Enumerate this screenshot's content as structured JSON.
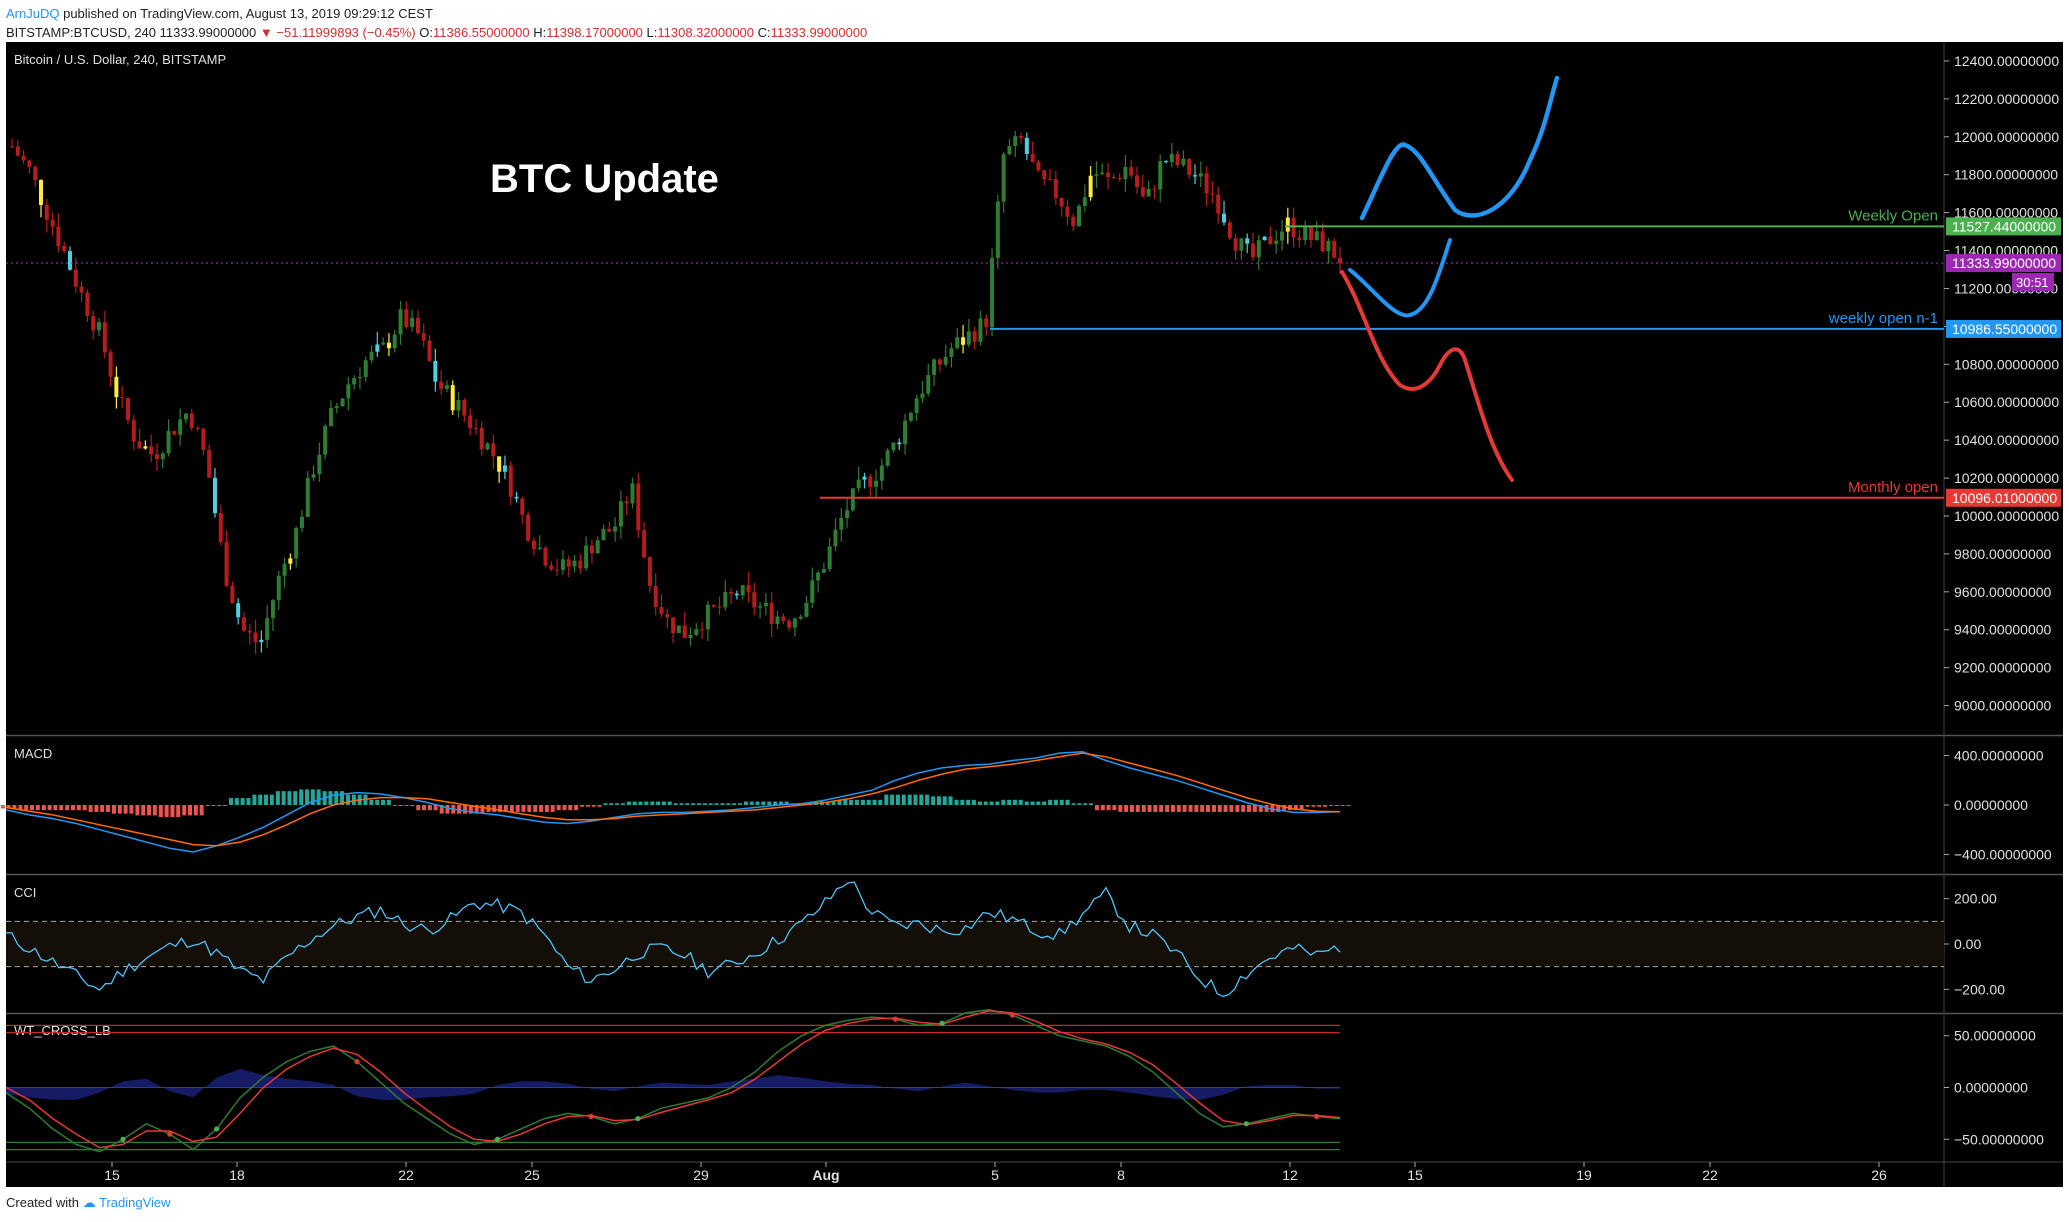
{
  "header": {
    "user": "ArnJuDQ",
    "published": "published on TradingView.com, August 13, 2019 09:29:12 CEST",
    "symbol_line_prefix": "BITSTAMP:BTCUSD, 240  11333.99000000",
    "change": "▼ −51.11999893 (−0.45%)",
    "o_label": "O:",
    "o_value": "11386.55000000",
    "h_label": "H:",
    "h_value": "11398.17000000",
    "l_label": "L:",
    "l_value": "11308.32000000",
    "c_label": "C:",
    "c_value": "11333.99000000"
  },
  "footer": {
    "created_with": "Created with",
    "brand": "TradingView"
  },
  "colors": {
    "bg": "#000000",
    "up": "#2e7d32",
    "down": "#b71c1c",
    "blue": "#2196f3",
    "green": "#4caf50",
    "red": "#e53935",
    "purple": "#9c27b0",
    "teal": "#26a69a"
  },
  "chart_data": [
    {
      "type": "candlestick",
      "title": "Bitcoin / U.S. Dollar, 240, BITSTAMP",
      "annotation": "BTC Update",
      "ylim": [
        8850,
        12500
      ],
      "y_ticks": [
        9000,
        9200,
        9400,
        9600,
        9800,
        10000,
        10200,
        10400,
        10600,
        10800,
        11000,
        11200,
        11400,
        11600,
        11800,
        12000,
        12200,
        12400
      ],
      "y_tick_labels": [
        "9000.00000000",
        "9200.00000000",
        "9400.00000000",
        "9600.00000000",
        "9800.00000000",
        "10000.00000000",
        "10200.00000000",
        "10400.00000000",
        "10600.00000000",
        "10800.00000000",
        "11000.00000000",
        "11200.00000000",
        "11400.00000000",
        "11600.00000000",
        "11800.00000000",
        "12000.00000000",
        "12200.00000000",
        "12400.00000000"
      ],
      "x_tick_labels": [
        "15",
        "18",
        "22",
        "25",
        "29",
        "Aug",
        "5",
        "8",
        "12",
        "15",
        "19",
        "22",
        "26"
      ],
      "close_path": [
        11950,
        11820,
        11600,
        11380,
        11150,
        10950,
        10620,
        10400,
        10320,
        10450,
        10560,
        10280,
        9720,
        9400,
        9320,
        9650,
        9900,
        10250,
        10520,
        10700,
        10820,
        10880,
        11050,
        10950,
        10700,
        10600,
        10480,
        10350,
        10200,
        9950,
        9800,
        9720,
        9760,
        9880,
        9940,
        10150,
        9650,
        9450,
        9380,
        9460,
        9520,
        9600,
        9530,
        9480,
        9450,
        9580,
        9780,
        10020,
        10160,
        10250,
        10400,
        10620,
        10760,
        10880,
        10950,
        11020,
        11900,
        11980,
        11760,
        11700,
        11550,
        11820,
        11760,
        11850,
        11640,
        11880,
        11850,
        11780,
        11680,
        11470,
        11350,
        11460,
        11540,
        11480,
        11440,
        11360
      ],
      "levels": [
        {
          "name": "Weekly Open",
          "value": 11527.44,
          "label": "11527.44000000",
          "color": "#4caf50"
        },
        {
          "name": "weekly open n-1",
          "value": 10986.55,
          "label": "10986.55000000",
          "color": "#2196f3"
        },
        {
          "name": "Monthly open",
          "value": 10096.01,
          "label": "10096.01000000",
          "color": "#e53935"
        }
      ],
      "last_price": {
        "value": 11333.99,
        "label": "11333.99000000",
        "countdown": "30:51",
        "color": "#9c27b0"
      }
    },
    {
      "type": "macd",
      "title": "MACD",
      "ylim": [
        -550,
        550
      ],
      "y_ticks": [
        -400,
        0,
        400
      ],
      "y_tick_labels": [
        "−400.00000000",
        "0.00000000",
        "400.00000000"
      ],
      "macd": [
        -40,
        -80,
        -110,
        -150,
        -200,
        -250,
        -300,
        -350,
        -380,
        -330,
        -260,
        -180,
        -80,
        20,
        80,
        100,
        90,
        60,
        20,
        -30,
        -60,
        -80,
        -110,
        -140,
        -150,
        -130,
        -100,
        -70,
        -60,
        -60,
        -50,
        -40,
        -20,
        0,
        10,
        40,
        80,
        120,
        200,
        260,
        300,
        320,
        330,
        360,
        380,
        420,
        430,
        360,
        300,
        250,
        200,
        140,
        80,
        20,
        -30,
        -60,
        -60,
        -55
      ],
      "signal": [
        -20,
        -50,
        -80,
        -120,
        -160,
        -200,
        -240,
        -280,
        -320,
        -330,
        -300,
        -240,
        -160,
        -70,
        0,
        40,
        60,
        60,
        50,
        20,
        -10,
        -40,
        -70,
        -100,
        -120,
        -120,
        -110,
        -90,
        -80,
        -70,
        -60,
        -50,
        -40,
        -20,
        0,
        20,
        50,
        90,
        140,
        200,
        250,
        290,
        310,
        330,
        360,
        390,
        420,
        390,
        340,
        290,
        240,
        180,
        120,
        60,
        10,
        -30,
        -50,
        -55
      ]
    },
    {
      "type": "cci",
      "title": "CCI",
      "ylim": [
        -300,
        300
      ],
      "y_ticks": [
        -200,
        0,
        200
      ],
      "y_tick_labels": [
        "−200.00",
        "0.00",
        "200.00"
      ],
      "bands": [
        -100,
        100
      ],
      "values": [
        40,
        -20,
        -80,
        -140,
        -200,
        -120,
        -60,
        -10,
        20,
        -40,
        -120,
        -160,
        -60,
        20,
        80,
        120,
        150,
        90,
        60,
        110,
        180,
        170,
        140,
        40,
        -100,
        -160,
        -110,
        -40,
        -20,
        -50,
        -120,
        -90,
        -40,
        20,
        90,
        180,
        220,
        140,
        80,
        90,
        60,
        70,
        140,
        110,
        60,
        40,
        130,
        220,
        80,
        40,
        -40,
        -150,
        -220,
        -130,
        -60,
        -20,
        -50,
        -10
      ],
      "raw_extras": {
        "spike_index": 36,
        "spike_value": 290
      }
    },
    {
      "type": "wavetrend",
      "title": "WT_CROSS_LB",
      "ylim": [
        -70,
        70
      ],
      "y_ticks": [
        -50,
        0,
        50
      ],
      "y_tick_labels": [
        "−50.00000000",
        "0.00000000",
        "50.00000000"
      ],
      "ob_levels": [
        53,
        60
      ],
      "os_levels": [
        -53,
        -60
      ],
      "wt1": [
        -5,
        -20,
        -40,
        -55,
        -62,
        -50,
        -35,
        -45,
        -60,
        -40,
        -10,
        10,
        25,
        35,
        40,
        25,
        5,
        -15,
        -30,
        -45,
        -55,
        -50,
        -40,
        -30,
        -25,
        -28,
        -35,
        -30,
        -20,
        -15,
        -10,
        0,
        15,
        35,
        50,
        60,
        65,
        68,
        66,
        60,
        62,
        72,
        75,
        70,
        60,
        50,
        45,
        40,
        30,
        15,
        -5,
        -25,
        -38,
        -35,
        -30,
        -25,
        -28,
        -30
      ],
      "wt2": [
        0,
        -12,
        -30,
        -45,
        -58,
        -55,
        -42,
        -42,
        -52,
        -48,
        -25,
        0,
        18,
        30,
        38,
        32,
        15,
        -5,
        -22,
        -38,
        -50,
        -52,
        -45,
        -35,
        -28,
        -27,
        -32,
        -31,
        -24,
        -18,
        -12,
        -5,
        8,
        25,
        42,
        55,
        62,
        66,
        67,
        63,
        61,
        68,
        74,
        72,
        64,
        54,
        47,
        42,
        34,
        22,
        4,
        -15,
        -32,
        -36,
        -32,
        -27,
        -27,
        -29
      ]
    }
  ]
}
